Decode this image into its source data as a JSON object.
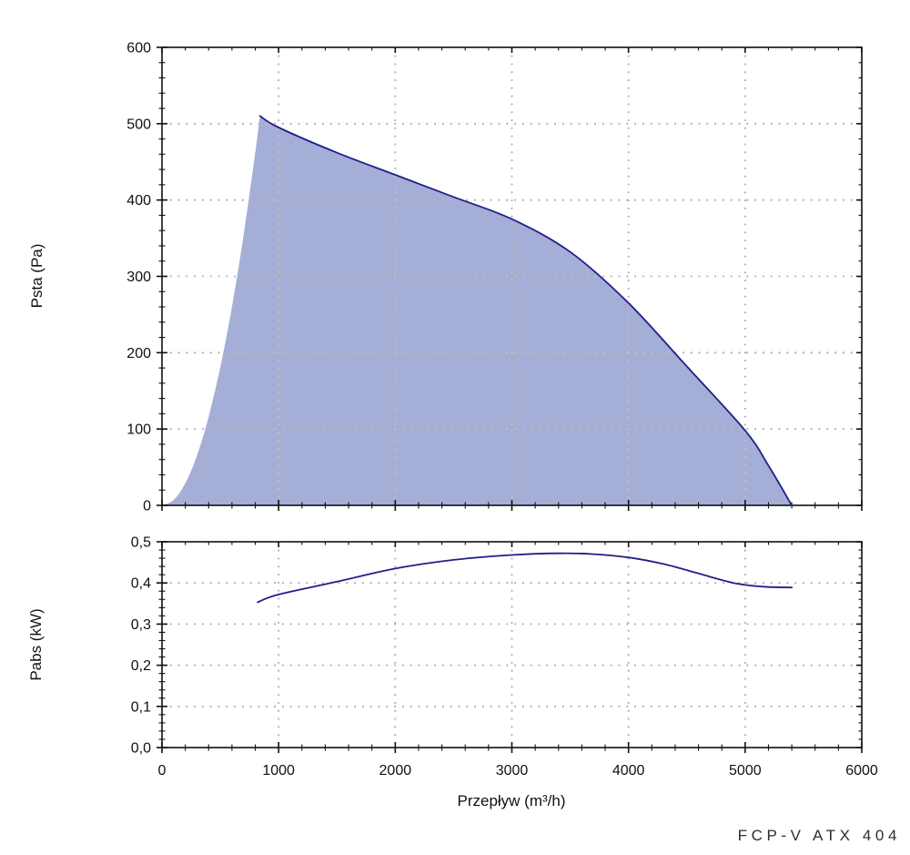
{
  "footer": {
    "model_label": "FCP-V ATX 404"
  },
  "colors": {
    "curve": "#20208a",
    "area_fill": "#a4aed6",
    "grid": "#a8a8a8",
    "grid_on_fill": "#cdc5a2",
    "axis": "#111111",
    "text": "#111111",
    "footer_text": "#2e2e2e"
  },
  "chart_data": [
    {
      "type": "area",
      "title": "",
      "ylabel": "Psta (Pa)",
      "xlabel": "Przepływ (m³/h)",
      "xlim": [
        0,
        6000
      ],
      "ylim": [
        0,
        600
      ],
      "grid": "dotted",
      "legend": "none",
      "x_major_ticks": [
        0,
        1000,
        2000,
        3000,
        4000,
        5000,
        6000
      ],
      "x_tick_labels": null,
      "x_minor_step": 200,
      "y_major_ticks": [
        0,
        100,
        200,
        300,
        400,
        500,
        600
      ],
      "y_tick_labels": [
        "0",
        "100",
        "200",
        "300",
        "400",
        "500",
        "600"
      ],
      "y_minor_step": 20,
      "x_grid": [
        1000,
        2000,
        3000,
        4000,
        5000
      ],
      "y_grid": [
        100,
        200,
        300,
        400,
        500
      ],
      "series": [
        {
          "name": "operating-area-left-boundary",
          "stroke": false,
          "points": [
            [
              0,
              0
            ],
            [
              100,
              7
            ],
            [
              200,
              29
            ],
            [
              300,
              65
            ],
            [
              400,
              116
            ],
            [
              500,
              181
            ],
            [
              600,
              260
            ],
            [
              700,
              354
            ],
            [
              800,
              462
            ],
            [
              840,
              510
            ]
          ]
        },
        {
          "name": "fan-pressure-curve",
          "stroke": true,
          "points": [
            [
              840,
              510
            ],
            [
              1000,
              495
            ],
            [
              1500,
              462
            ],
            [
              2000,
              433
            ],
            [
              2500,
              404
            ],
            [
              3000,
              375
            ],
            [
              3500,
              332
            ],
            [
              4000,
              265
            ],
            [
              4500,
              182
            ],
            [
              5000,
              98
            ],
            [
              5200,
              52
            ],
            [
              5400,
              0
            ]
          ]
        }
      ]
    },
    {
      "type": "line",
      "title": "",
      "ylabel": "Pabs (kW)",
      "xlabel": "Przepływ (m³/h)",
      "xlim": [
        0,
        6000
      ],
      "ylim": [
        0,
        0.5
      ],
      "grid": "dotted",
      "legend": "none",
      "x_major_ticks": [
        0,
        1000,
        2000,
        3000,
        4000,
        5000,
        6000
      ],
      "x_tick_labels": [
        "0",
        "1000",
        "2000",
        "3000",
        "4000",
        "5000",
        "6000"
      ],
      "x_minor_step": 200,
      "y_major_ticks": [
        0,
        0.1,
        0.2,
        0.3,
        0.4,
        0.5
      ],
      "y_tick_labels": [
        "0,0",
        "0,1",
        "0,2",
        "0,3",
        "0,4",
        "0,5"
      ],
      "y_minor_step": 0.02,
      "x_grid": [
        1000,
        2000,
        3000,
        4000,
        5000
      ],
      "y_grid": [
        0.1,
        0.2,
        0.3,
        0.4
      ],
      "series": [
        {
          "name": "absorbed-power-curve",
          "stroke": true,
          "points": [
            [
              820,
              0.353
            ],
            [
              1000,
              0.372
            ],
            [
              1500,
              0.403
            ],
            [
              2000,
              0.435
            ],
            [
              2500,
              0.456
            ],
            [
              3000,
              0.468
            ],
            [
              3400,
              0.472
            ],
            [
              3700,
              0.47
            ],
            [
              4000,
              0.462
            ],
            [
              4300,
              0.446
            ],
            [
              4600,
              0.423
            ],
            [
              4900,
              0.4
            ],
            [
              5150,
              0.391
            ],
            [
              5400,
              0.389
            ]
          ]
        }
      ]
    }
  ]
}
